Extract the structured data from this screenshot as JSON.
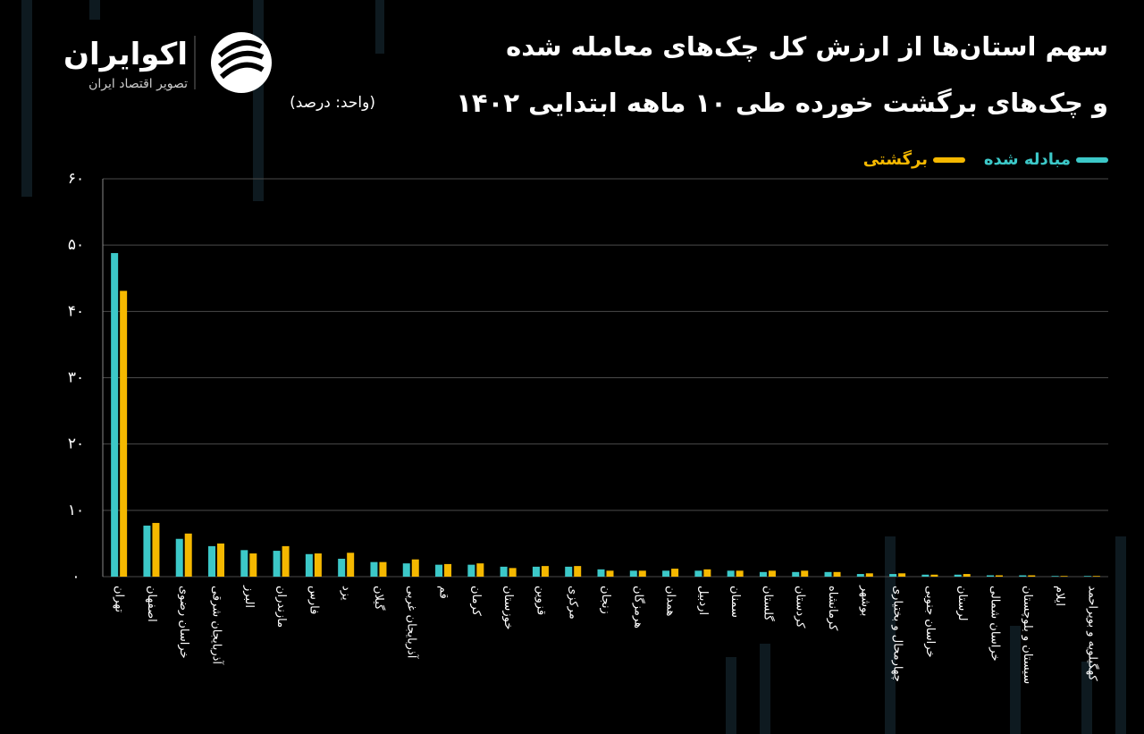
{
  "brand": {
    "name": "اکوایران",
    "tagline": "تصویر اقتصاد ایران"
  },
  "chart_data": {
    "type": "bar",
    "title": "سهم استان‌ها از ارزش کل چک‌های معامله شده",
    "title_line2": "و چک‌های برگشت خورده طی ۱۰ ماهه ابتدایی ۱۴۰۲",
    "subtitle": "(واحد: درصد)",
    "categories": [
      "تهران",
      "اصفهان",
      "خراسان رضوی",
      "آذربایجان شرقی",
      "البرز",
      "مازندران",
      "فارس",
      "یزد",
      "گیلان",
      "آذربایجان غربی",
      "قم",
      "کرمان",
      "خوزستان",
      "قزوین",
      "مرکزی",
      "زنجان",
      "هرمزگان",
      "همدان",
      "اردبیل",
      "سمنان",
      "گلستان",
      "کردستان",
      "کرمانشاه",
      "بوشهر",
      "چهارمحال و بختیاری",
      "خراسان جنوبی",
      "لرستان",
      "خراسان شمالی",
      "سیستان و بلوچستان",
      "ایلام",
      "کهگیلویه و بویراحمد"
    ],
    "series": [
      {
        "name": "مبادله شده",
        "color": "#3cc8c8",
        "values": [
          48.8,
          7.7,
          5.7,
          4.6,
          4.0,
          3.9,
          3.4,
          2.7,
          2.2,
          2.0,
          1.8,
          1.8,
          1.5,
          1.5,
          1.5,
          1.1,
          0.9,
          0.9,
          0.9,
          0.9,
          0.7,
          0.7,
          0.7,
          0.4,
          0.4,
          0.3,
          0.3,
          0.2,
          0.2,
          0.1,
          0.1
        ]
      },
      {
        "name": "برگشتی",
        "color": "#f5b800",
        "values": [
          43.1,
          8.1,
          6.5,
          5.0,
          3.5,
          4.6,
          3.5,
          3.6,
          2.2,
          2.6,
          1.9,
          2.0,
          1.3,
          1.6,
          1.6,
          0.9,
          0.9,
          1.2,
          1.1,
          0.9,
          0.9,
          0.9,
          0.7,
          0.5,
          0.5,
          0.3,
          0.4,
          0.2,
          0.2,
          0.1,
          0.1
        ]
      }
    ],
    "ylim": [
      0,
      60
    ],
    "yticks": [
      {
        "value": 0,
        "label": "۰"
      },
      {
        "value": 10,
        "label": "۱۰"
      },
      {
        "value": 20,
        "label": "۲۰"
      },
      {
        "value": 30,
        "label": "۳۰"
      },
      {
        "value": 40,
        "label": "۴۰"
      },
      {
        "value": 50,
        "label": "۵۰"
      },
      {
        "value": 60,
        "label": "۶۰"
      }
    ],
    "grid": true,
    "legend": "top-right"
  }
}
